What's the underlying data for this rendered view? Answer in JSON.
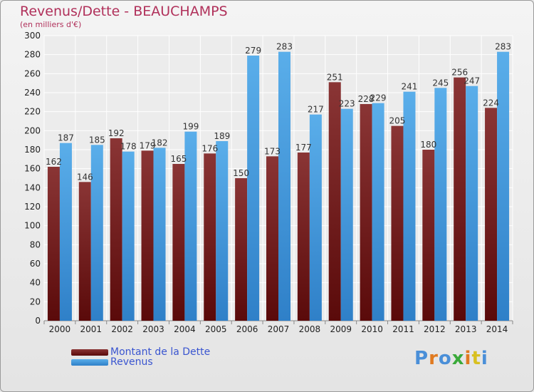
{
  "header": {
    "title": "Revenus/Dette - BEAUCHAMPS",
    "subtitle": "(en milliers d'€)"
  },
  "legend": {
    "debt_label": "Montant de la Dette",
    "revenue_label": "Revenus"
  },
  "logo": {
    "text": "Proxiti",
    "letters": [
      "P",
      "r",
      "o",
      "x",
      "i",
      "t",
      "i"
    ],
    "colors": [
      "#4a8fd8",
      "#e07a20",
      "#4a8fd8",
      "#3aaa3a",
      "#e07a20",
      "#d8c020",
      "#4a8fd8"
    ]
  },
  "colors": {
    "debt": "#6e1515",
    "debt_light": "#8a3535",
    "revenue": "#3a8fd8",
    "revenue_light": "#5aaeea",
    "axis_text": "#222222",
    "title": "#b0305a"
  },
  "chart_data": {
    "type": "bar",
    "categories": [
      "2000",
      "2001",
      "2002",
      "2003",
      "2004",
      "2005",
      "2006",
      "2007",
      "2008",
      "2009",
      "2010",
      "2011",
      "2012",
      "2013",
      "2014"
    ],
    "series": [
      {
        "name": "Montant de la Dette",
        "values": [
          162,
          146,
          192,
          179,
          165,
          176,
          150,
          173,
          177,
          251,
          228,
          205,
          180,
          256,
          224
        ]
      },
      {
        "name": "Revenus",
        "values": [
          187,
          185,
          178,
          182,
          199,
          189,
          279,
          283,
          217,
          223,
          229,
          241,
          245,
          247,
          283
        ]
      }
    ],
    "title": "Revenus/Dette - BEAUCHAMPS",
    "subtitle": "(en milliers d'€)",
    "ylim": [
      0,
      300
    ],
    "yticks": [
      0,
      20,
      40,
      60,
      80,
      100,
      120,
      140,
      160,
      180,
      200,
      220,
      240,
      260,
      280,
      300
    ],
    "grid": true,
    "legend_position": "bottom-left"
  }
}
